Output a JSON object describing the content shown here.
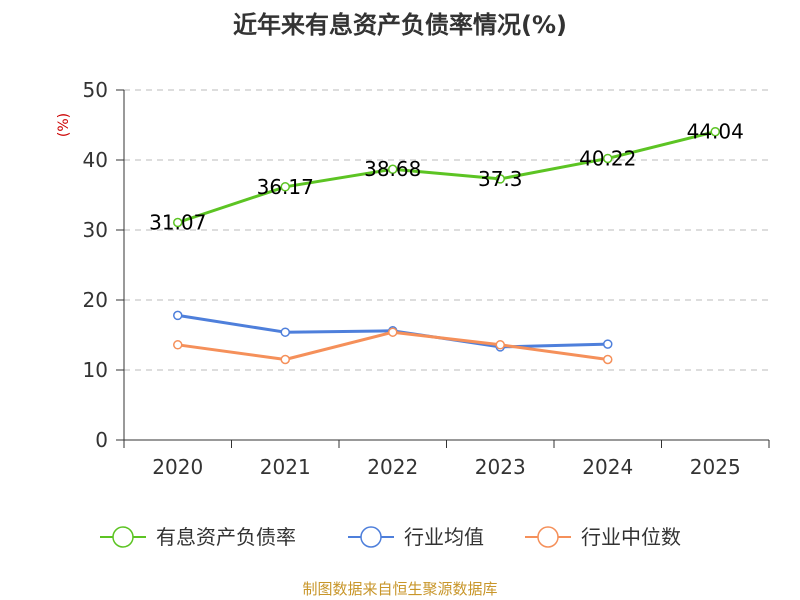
{
  "chart_data": {
    "type": "line",
    "title": "近年来有息资产负债率情况(%)",
    "ylabel": "(%)",
    "xlabel": "",
    "categories": [
      "2020",
      "2021",
      "2022",
      "2023",
      "2024",
      "2025"
    ],
    "ylim": [
      0,
      50
    ],
    "yticks": [
      0,
      10,
      20,
      30,
      40,
      50
    ],
    "grid": true,
    "legend_position": "bottom",
    "series": [
      {
        "name": "有息资产负债率",
        "values": [
          31.07,
          36.17,
          38.68,
          37.3,
          40.22,
          44.04
        ],
        "labels": [
          "31.07",
          "36.17",
          "38.68",
          "37.3",
          "40.22",
          "44.04"
        ],
        "color": "#5cc423"
      },
      {
        "name": "行业均值",
        "values": [
          17.8,
          15.4,
          15.6,
          13.3,
          13.7,
          null
        ],
        "color": "#4e7fdb"
      },
      {
        "name": "行业中位数",
        "values": [
          13.6,
          11.5,
          15.4,
          13.6,
          11.5,
          null
        ],
        "color": "#f5905a"
      }
    ]
  },
  "source": "制图数据来自恒生聚源数据库",
  "colors": {
    "axis": "#333333",
    "grid": "#bbbbbb",
    "unit": "#cc0000",
    "source": "#c8962a"
  }
}
